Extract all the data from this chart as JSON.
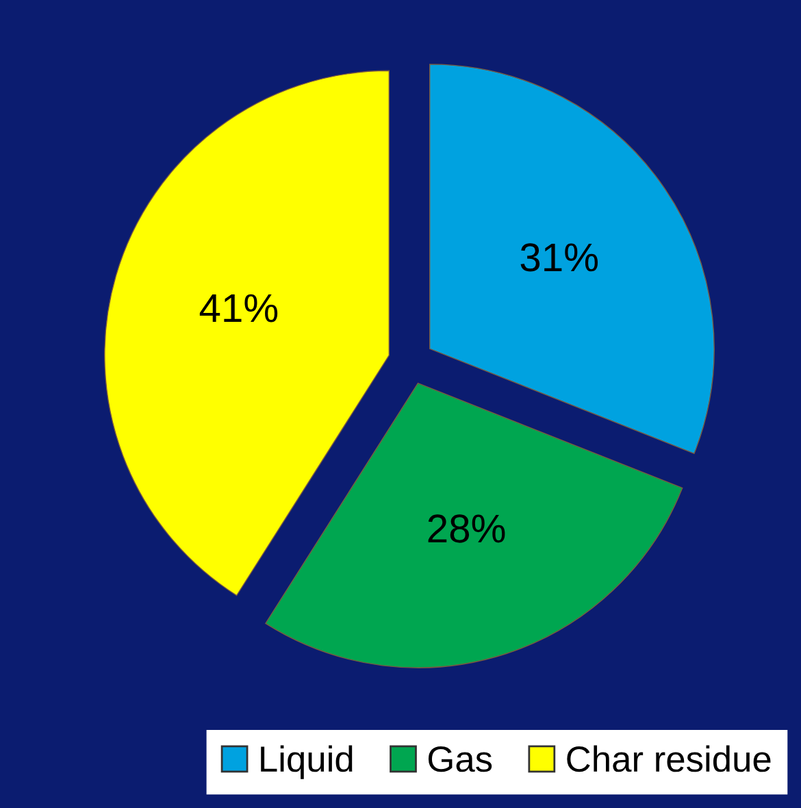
{
  "chart_data": {
    "type": "pie",
    "categories": [
      "Liquid",
      "Gas",
      "Char residue"
    ],
    "values": [
      31,
      28,
      41
    ],
    "colors": [
      "#00a2e0",
      "#00a650",
      "#ffff00"
    ],
    "value_labels": [
      "31%",
      "28%",
      "41%"
    ],
    "legend": "bottom"
  }
}
